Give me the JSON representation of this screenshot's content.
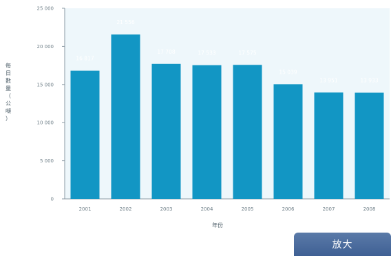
{
  "chart_data": {
    "type": "bar",
    "categories": [
      "2001",
      "2002",
      "2003",
      "2004",
      "2005",
      "2006",
      "2007",
      "2008"
    ],
    "values": [
      16817,
      21556,
      17708,
      17533,
      17575,
      15039,
      13951,
      13933
    ],
    "value_labels": [
      "16 817",
      "21 556",
      "17 708",
      "17 533",
      "17 575",
      "15 039",
      "13 951",
      "13 933"
    ],
    "y_ticks": [
      0,
      5000,
      10000,
      15000,
      20000,
      25000
    ],
    "y_tick_labels": [
      "0",
      "5 000",
      "10 000",
      "15 000",
      "20 000",
      "25 000"
    ],
    "ylim": [
      0,
      25000
    ],
    "ylabel": "每日數量（公噸）",
    "xlabel": "年份",
    "grid": false,
    "colors": {
      "bar": "#1296c4",
      "plot_bg": "#eef7fb",
      "axis": "#8a99a3"
    }
  },
  "button": {
    "zoom_label": "放大"
  }
}
